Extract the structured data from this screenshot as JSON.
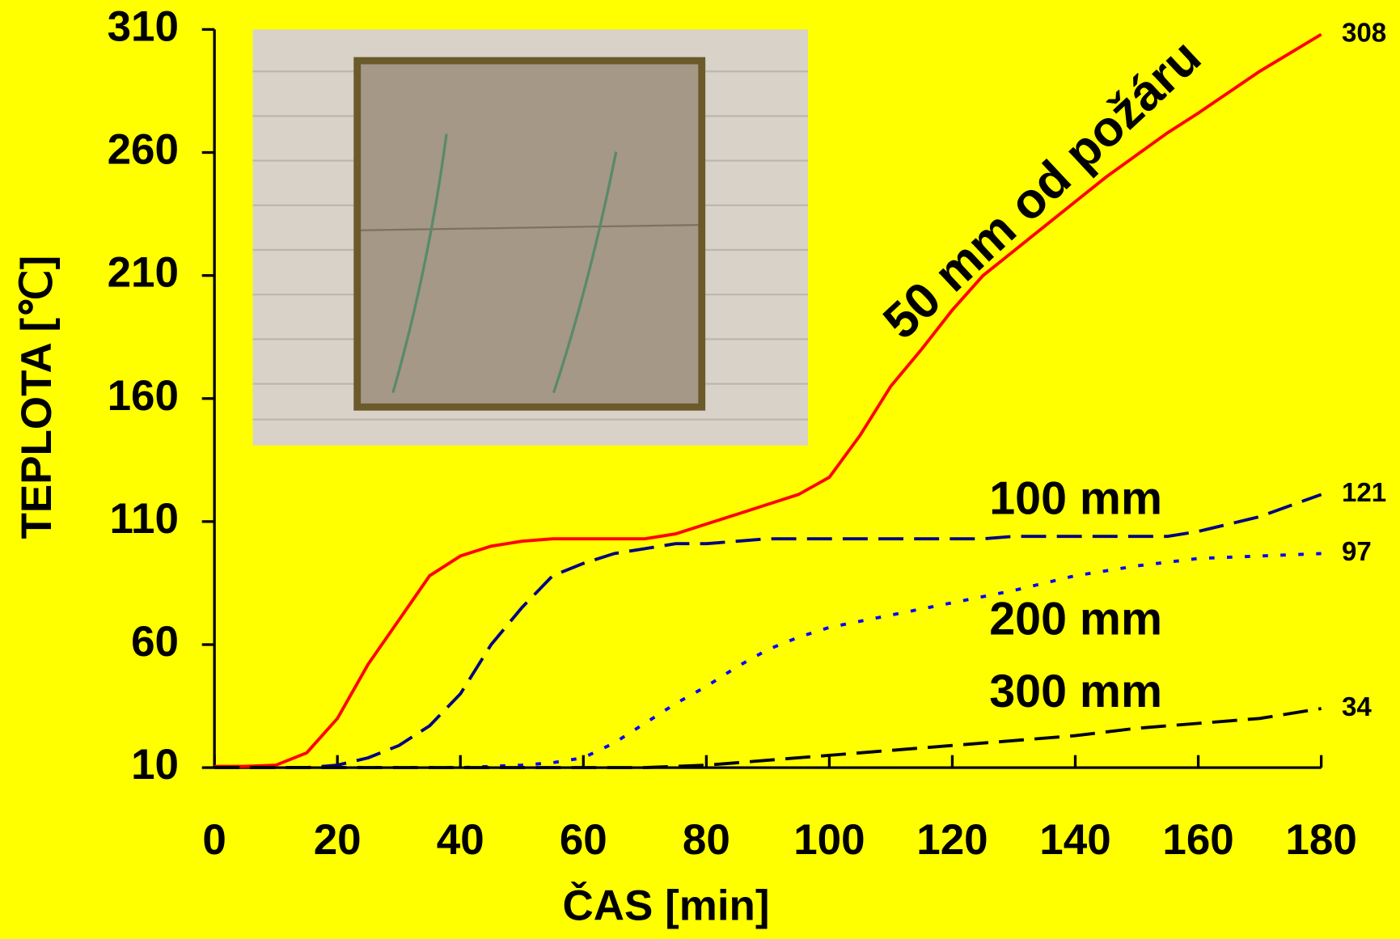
{
  "chart_data": {
    "type": "line",
    "x_label": "ČAS [min]",
    "y_label": "TEPLOTA [℃]",
    "xlim": [
      0,
      180
    ],
    "xticks": [
      0,
      20,
      40,
      60,
      80,
      100,
      120,
      140,
      160,
      180
    ],
    "ylim": [
      10,
      310
    ],
    "yticks": [
      10,
      60,
      110,
      160,
      210,
      260,
      310
    ],
    "series": [
      {
        "name": "50 mm od požáru",
        "color": "#ff0000",
        "style": "solid",
        "x": [
          0,
          5,
          10,
          15,
          20,
          25,
          30,
          35,
          40,
          45,
          50,
          55,
          60,
          70,
          75,
          80,
          85,
          90,
          95,
          100,
          105,
          110,
          115,
          120,
          125,
          130,
          140,
          145,
          150,
          155,
          160,
          170,
          180
        ],
        "values": [
          10.5,
          10.5,
          11,
          16,
          30,
          52,
          70,
          88,
          96,
          100,
          102,
          103,
          103,
          103,
          105,
          109,
          113,
          117,
          121,
          128,
          145,
          165,
          180,
          196,
          210,
          220,
          240,
          250,
          259,
          268,
          276,
          293,
          308
        ]
      },
      {
        "name": "100 mm",
        "color": "#000080",
        "style": "dashed",
        "x": [
          0,
          15,
          20,
          25,
          30,
          35,
          40,
          45,
          50,
          55,
          60,
          65,
          70,
          75,
          80,
          90,
          100,
          120,
          125,
          130,
          150,
          155,
          160,
          170,
          180
        ],
        "values": [
          10,
          10,
          11,
          14,
          19,
          27,
          40,
          60,
          75,
          88,
          93,
          97,
          99,
          101,
          101,
          103,
          103,
          103,
          103,
          104,
          104,
          104,
          106,
          112,
          121
        ]
      },
      {
        "name": "200 mm",
        "color": "#0000ff",
        "style": "dotted",
        "x": [
          0,
          40,
          50,
          55,
          60,
          65,
          70,
          75,
          80,
          85,
          90,
          95,
          100,
          110,
          120,
          130,
          140,
          150,
          160,
          170,
          180
        ],
        "values": [
          10,
          10,
          11,
          12,
          14,
          20,
          28,
          36,
          43,
          51,
          58,
          63,
          67,
          72,
          77,
          82,
          88,
          92,
          95,
          96,
          97
        ]
      },
      {
        "name": "300 mm",
        "color": "#000000",
        "style": "dashed",
        "x": [
          0,
          70,
          80,
          85,
          90,
          100,
          110,
          120,
          130,
          140,
          150,
          160,
          170,
          180
        ],
        "values": [
          10,
          10,
          11,
          12,
          13,
          15,
          17,
          19,
          21,
          23,
          26,
          28,
          30,
          34
        ]
      }
    ]
  }
}
